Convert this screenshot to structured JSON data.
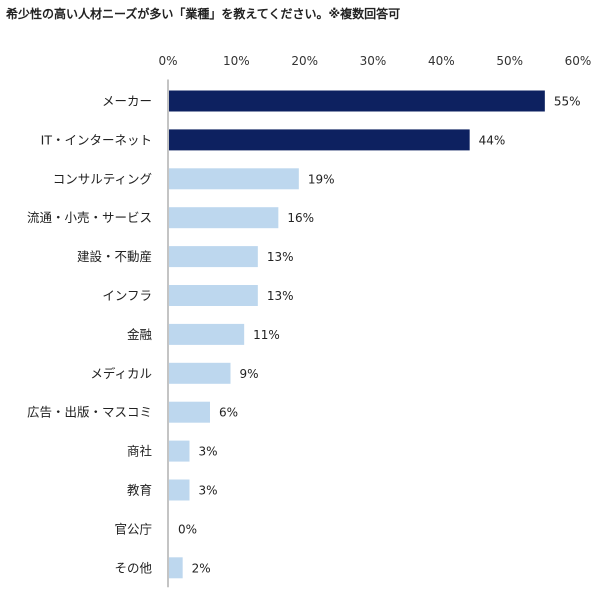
{
  "title": "希少性の高い人材ニーズが多い「業種」を教えてください。※複数回答可",
  "colors": {
    "highlight": "#0d2160",
    "normal": "#bdd7ee",
    "axis": "#888888"
  },
  "chart_data": {
    "type": "bar",
    "orientation": "horizontal",
    "categories": [
      "メーカー",
      "IT・インターネット",
      "コンサルティング",
      "流通・小売・サービス",
      "建設・不動産",
      "インフラ",
      "金融",
      "メディカル",
      "広告・出版・マスコミ",
      "商社",
      "教育",
      "官公庁",
      "その他"
    ],
    "values": [
      55,
      44,
      19,
      16,
      13,
      13,
      11,
      9,
      6,
      3,
      3,
      0,
      2
    ],
    "data_labels": [
      "55%",
      "44%",
      "19%",
      "16%",
      "13%",
      "13%",
      "11%",
      "9%",
      "6%",
      "3%",
      "3%",
      "0%",
      "2%"
    ],
    "highlighted": [
      true,
      true,
      false,
      false,
      false,
      false,
      false,
      false,
      false,
      false,
      false,
      false,
      false
    ],
    "xlim": [
      0,
      60
    ],
    "x_ticks": [
      0,
      10,
      20,
      30,
      40,
      50,
      60
    ],
    "x_tick_labels": [
      "0%",
      "10%",
      "20%",
      "30%",
      "40%",
      "50%",
      "60%"
    ],
    "axis_position": "top",
    "grid": false,
    "legend": "none",
    "xlabel": "",
    "ylabel": ""
  }
}
